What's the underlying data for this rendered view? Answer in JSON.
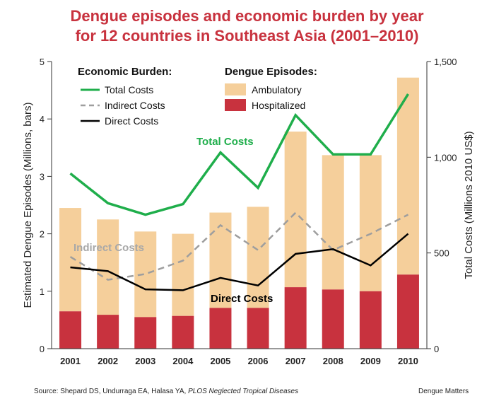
{
  "chart_data": {
    "type": "bar",
    "title_line1": "Dengue episodes and economic burden by year",
    "title_line2": "for 12 countries in Southeast Asia (2001–2010)",
    "ylabel_left": "Estimated Dengue Episodes (Millions, bars)",
    "ylabel_right": "Total Costs (Millions 2010 US$)",
    "ylim_left": [
      0,
      5
    ],
    "ylim_right": [
      0,
      1500
    ],
    "yticks_left": [
      "0",
      "1",
      "2",
      "3",
      "4",
      "5"
    ],
    "yticks_right": [
      "0",
      "500",
      "1,000",
      "1,500"
    ],
    "categories": [
      "2001",
      "2002",
      "2003",
      "2004",
      "2005",
      "2006",
      "2007",
      "2008",
      "2009",
      "2010"
    ],
    "bar_series": [
      {
        "name": "Hospitalized",
        "color": "#c8323e",
        "values": [
          0.65,
          0.59,
          0.55,
          0.57,
          0.71,
          0.71,
          1.07,
          1.03,
          1.0,
          1.29
        ]
      },
      {
        "name": "Ambulatory",
        "color": "#f5cf9b",
        "values": [
          1.8,
          1.66,
          1.49,
          1.43,
          1.66,
          1.76,
          2.71,
          2.34,
          2.37,
          3.43
        ]
      }
    ],
    "line_series": [
      {
        "name": "Total Costs",
        "color": "#1fae4b",
        "style": "solid",
        "values": [
          915,
          760,
          700,
          755,
          1025,
          840,
          1220,
          1015,
          1015,
          1330
        ]
      },
      {
        "name": "Indirect Costs",
        "color": "#9e9e9e",
        "style": "dashed",
        "values": [
          480,
          360,
          390,
          460,
          645,
          515,
          710,
          515,
          600,
          700
        ]
      },
      {
        "name": "Direct Costs",
        "color": "#000000",
        "style": "solid",
        "values": [
          425,
          405,
          310,
          305,
          370,
          330,
          495,
          520,
          435,
          600
        ]
      }
    ],
    "legend": {
      "economic_heading": "Economic Burden:",
      "episodes_heading": "Dengue Episodes:",
      "position": "top"
    },
    "annotations": [
      {
        "text": "Total Costs",
        "color": "#1fae4b"
      },
      {
        "text": "Indirect Costs",
        "color": "#a8a8a8"
      },
      {
        "text": "Direct Costs",
        "color": "#000000"
      }
    ]
  },
  "footer": {
    "source_prefix": "Source: Shepard DS, Undurraga EA, Halasa YA, ",
    "source_journal": "PLOS Neglected Tropical Diseases",
    "credit": "Dengue Matters"
  }
}
